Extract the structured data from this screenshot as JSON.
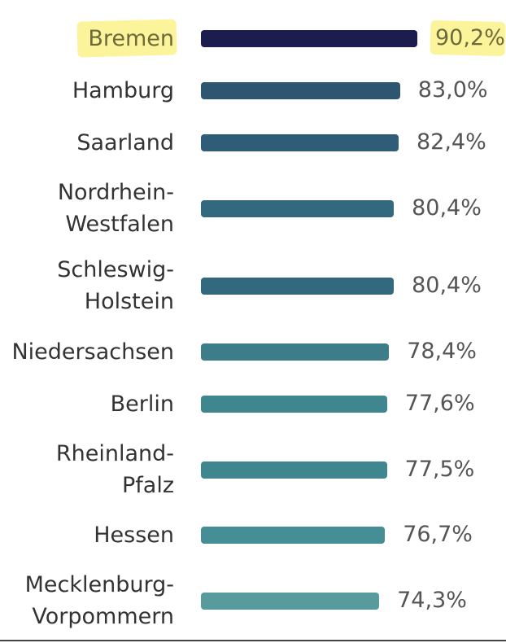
{
  "chart_data": {
    "type": "bar",
    "orientation": "horizontal",
    "title": "",
    "xlabel": "",
    "ylabel": "",
    "xlim": [
      0,
      100
    ],
    "categories": [
      [
        "Bremen"
      ],
      [
        "Hamburg"
      ],
      [
        "Saarland"
      ],
      [
        "Nordrhein-",
        "Westfalen"
      ],
      [
        "Schleswig-",
        "Holstein"
      ],
      [
        "Niedersachsen"
      ],
      [
        "Berlin"
      ],
      [
        "Rheinland-",
        "Pfalz"
      ],
      [
        "Hessen"
      ],
      [
        "Mecklenburg-",
        "Vorpommern"
      ]
    ],
    "values": [
      90.2,
      83.0,
      82.4,
      80.4,
      80.4,
      78.4,
      77.6,
      77.5,
      76.7,
      74.3
    ],
    "value_labels": [
      "90,2%",
      "83,0%",
      "82,4%",
      "80,4%",
      "80,4%",
      "78,4%",
      "77,6%",
      "77,5%",
      "76,7%",
      "74,3%"
    ],
    "colors": [
      "#1c1d4e",
      "#2e5670",
      "#2f5c76",
      "#33697f",
      "#33697f",
      "#3c7d89",
      "#3f868f",
      "#3f868f",
      "#468e95",
      "#589b9c"
    ],
    "highlight_index": 0,
    "highlight_color": "#fbf49a"
  }
}
